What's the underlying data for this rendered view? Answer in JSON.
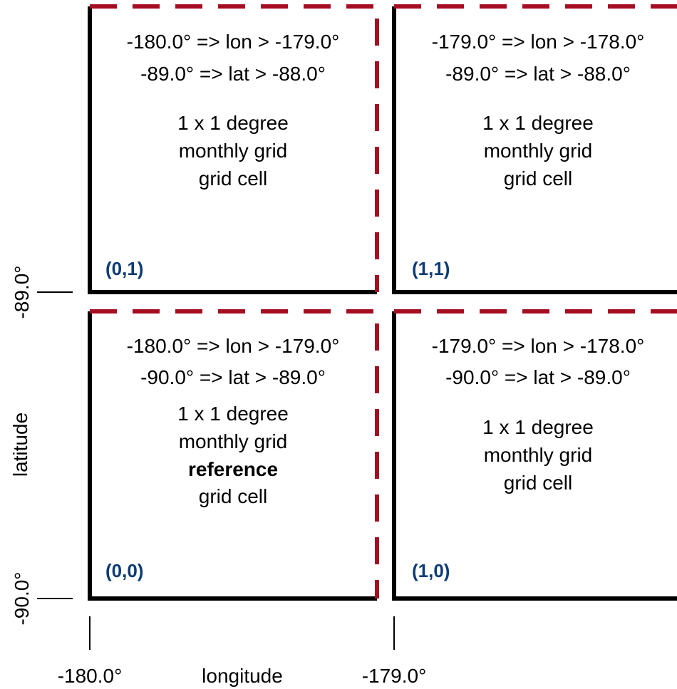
{
  "colors": {
    "solid_border": "#000000",
    "dashed_border": "#a50d22",
    "index_label": "#0d3c75",
    "background": "#ffffff"
  },
  "axes": {
    "y_label": "latitude",
    "x_label": "longitude",
    "y_ticks": [
      "-89.0°",
      "-90.0°"
    ],
    "x_ticks": [
      "-180.0°",
      "-179.0°"
    ]
  },
  "cells": {
    "cell_0_1": {
      "lon_range": "-180.0° => lon > -179.0°",
      "lat_range": "-89.0° => lat > -88.0°",
      "line1": "1 x 1 degree",
      "line2": "monthly grid",
      "line3": "grid cell",
      "index": "(0,1)"
    },
    "cell_1_1": {
      "lon_range": "-179.0° => lon > -178.0°",
      "lat_range": "-89.0° => lat > -88.0°",
      "line1": "1 x 1 degree",
      "line2": "monthly grid",
      "line3": "grid cell",
      "index": "(1,1)"
    },
    "cell_0_0": {
      "lon_range": "-180.0° => lon > -179.0°",
      "lat_range": "-90.0° => lat > -89.0°",
      "line1": "1 x 1 degree",
      "line2": "monthly grid",
      "line3": "reference",
      "line4": "grid cell",
      "index": "(0,0)"
    },
    "cell_1_0": {
      "lon_range": "-179.0° => lon > -178.0°",
      "lat_range": "-90.0° => lat > -89.0°",
      "line1": "1 x 1 degree",
      "line2": "monthly grid",
      "line3": "grid cell",
      "index": "(1,0)"
    }
  }
}
